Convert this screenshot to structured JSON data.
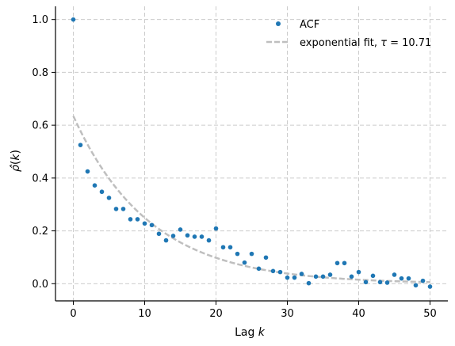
{
  "chart_data": {
    "type": "scatter",
    "title": "",
    "xlabel": "Lag k",
    "ylabel": "ρ̂(k)",
    "xlim": [
      -2.5,
      52.5
    ],
    "ylim": [
      -0.065,
      1.05
    ],
    "xticks": [
      0,
      10,
      20,
      30,
      40,
      50
    ],
    "xtick_labels": [
      "0",
      "10",
      "20",
      "30",
      "40",
      "50"
    ],
    "yticks": [
      0.0,
      0.2,
      0.4,
      0.6,
      0.8,
      1.0
    ],
    "ytick_labels": [
      "0.0",
      "0.2",
      "0.4",
      "0.6",
      "0.8",
      "1.0"
    ],
    "grid": true,
    "legend_position": "top-right",
    "series": [
      {
        "name": "ACF",
        "kind": "scatter",
        "color": "#1f77b4",
        "x": [
          0,
          1,
          2,
          3,
          4,
          5,
          6,
          7,
          8,
          9,
          10,
          11,
          12,
          13,
          14,
          15,
          16,
          17,
          18,
          19,
          20,
          21,
          22,
          23,
          24,
          25,
          26,
          27,
          28,
          29,
          30,
          31,
          32,
          33,
          34,
          35,
          36,
          37,
          38,
          39,
          40,
          41,
          42,
          43,
          44,
          45,
          46,
          47,
          48,
          49,
          50
        ],
        "y": [
          1.0,
          0.525,
          0.425,
          0.372,
          0.348,
          0.325,
          0.283,
          0.283,
          0.244,
          0.244,
          0.228,
          0.222,
          0.189,
          0.164,
          0.181,
          0.205,
          0.183,
          0.178,
          0.178,
          0.164,
          0.209,
          0.138,
          0.138,
          0.113,
          0.08,
          0.113,
          0.057,
          0.099,
          0.048,
          0.044,
          0.023,
          0.023,
          0.037,
          0.002,
          0.027,
          0.027,
          0.034,
          0.078,
          0.078,
          0.027,
          0.044,
          0.006,
          0.03,
          0.006,
          0.004,
          0.034,
          0.02,
          0.02,
          -0.006,
          0.011,
          -0.011
        ]
      },
      {
        "name": "exponential fit, τ =  10.71",
        "name_prefix": "exponential fit, ",
        "name_tau_symbol": "τ",
        "name_suffix": " =  10.71",
        "kind": "line",
        "style": "dashed",
        "color": "#bfbfbf",
        "amplitude": 0.635,
        "tau": 10.71,
        "x_range": [
          0,
          50
        ]
      }
    ]
  }
}
